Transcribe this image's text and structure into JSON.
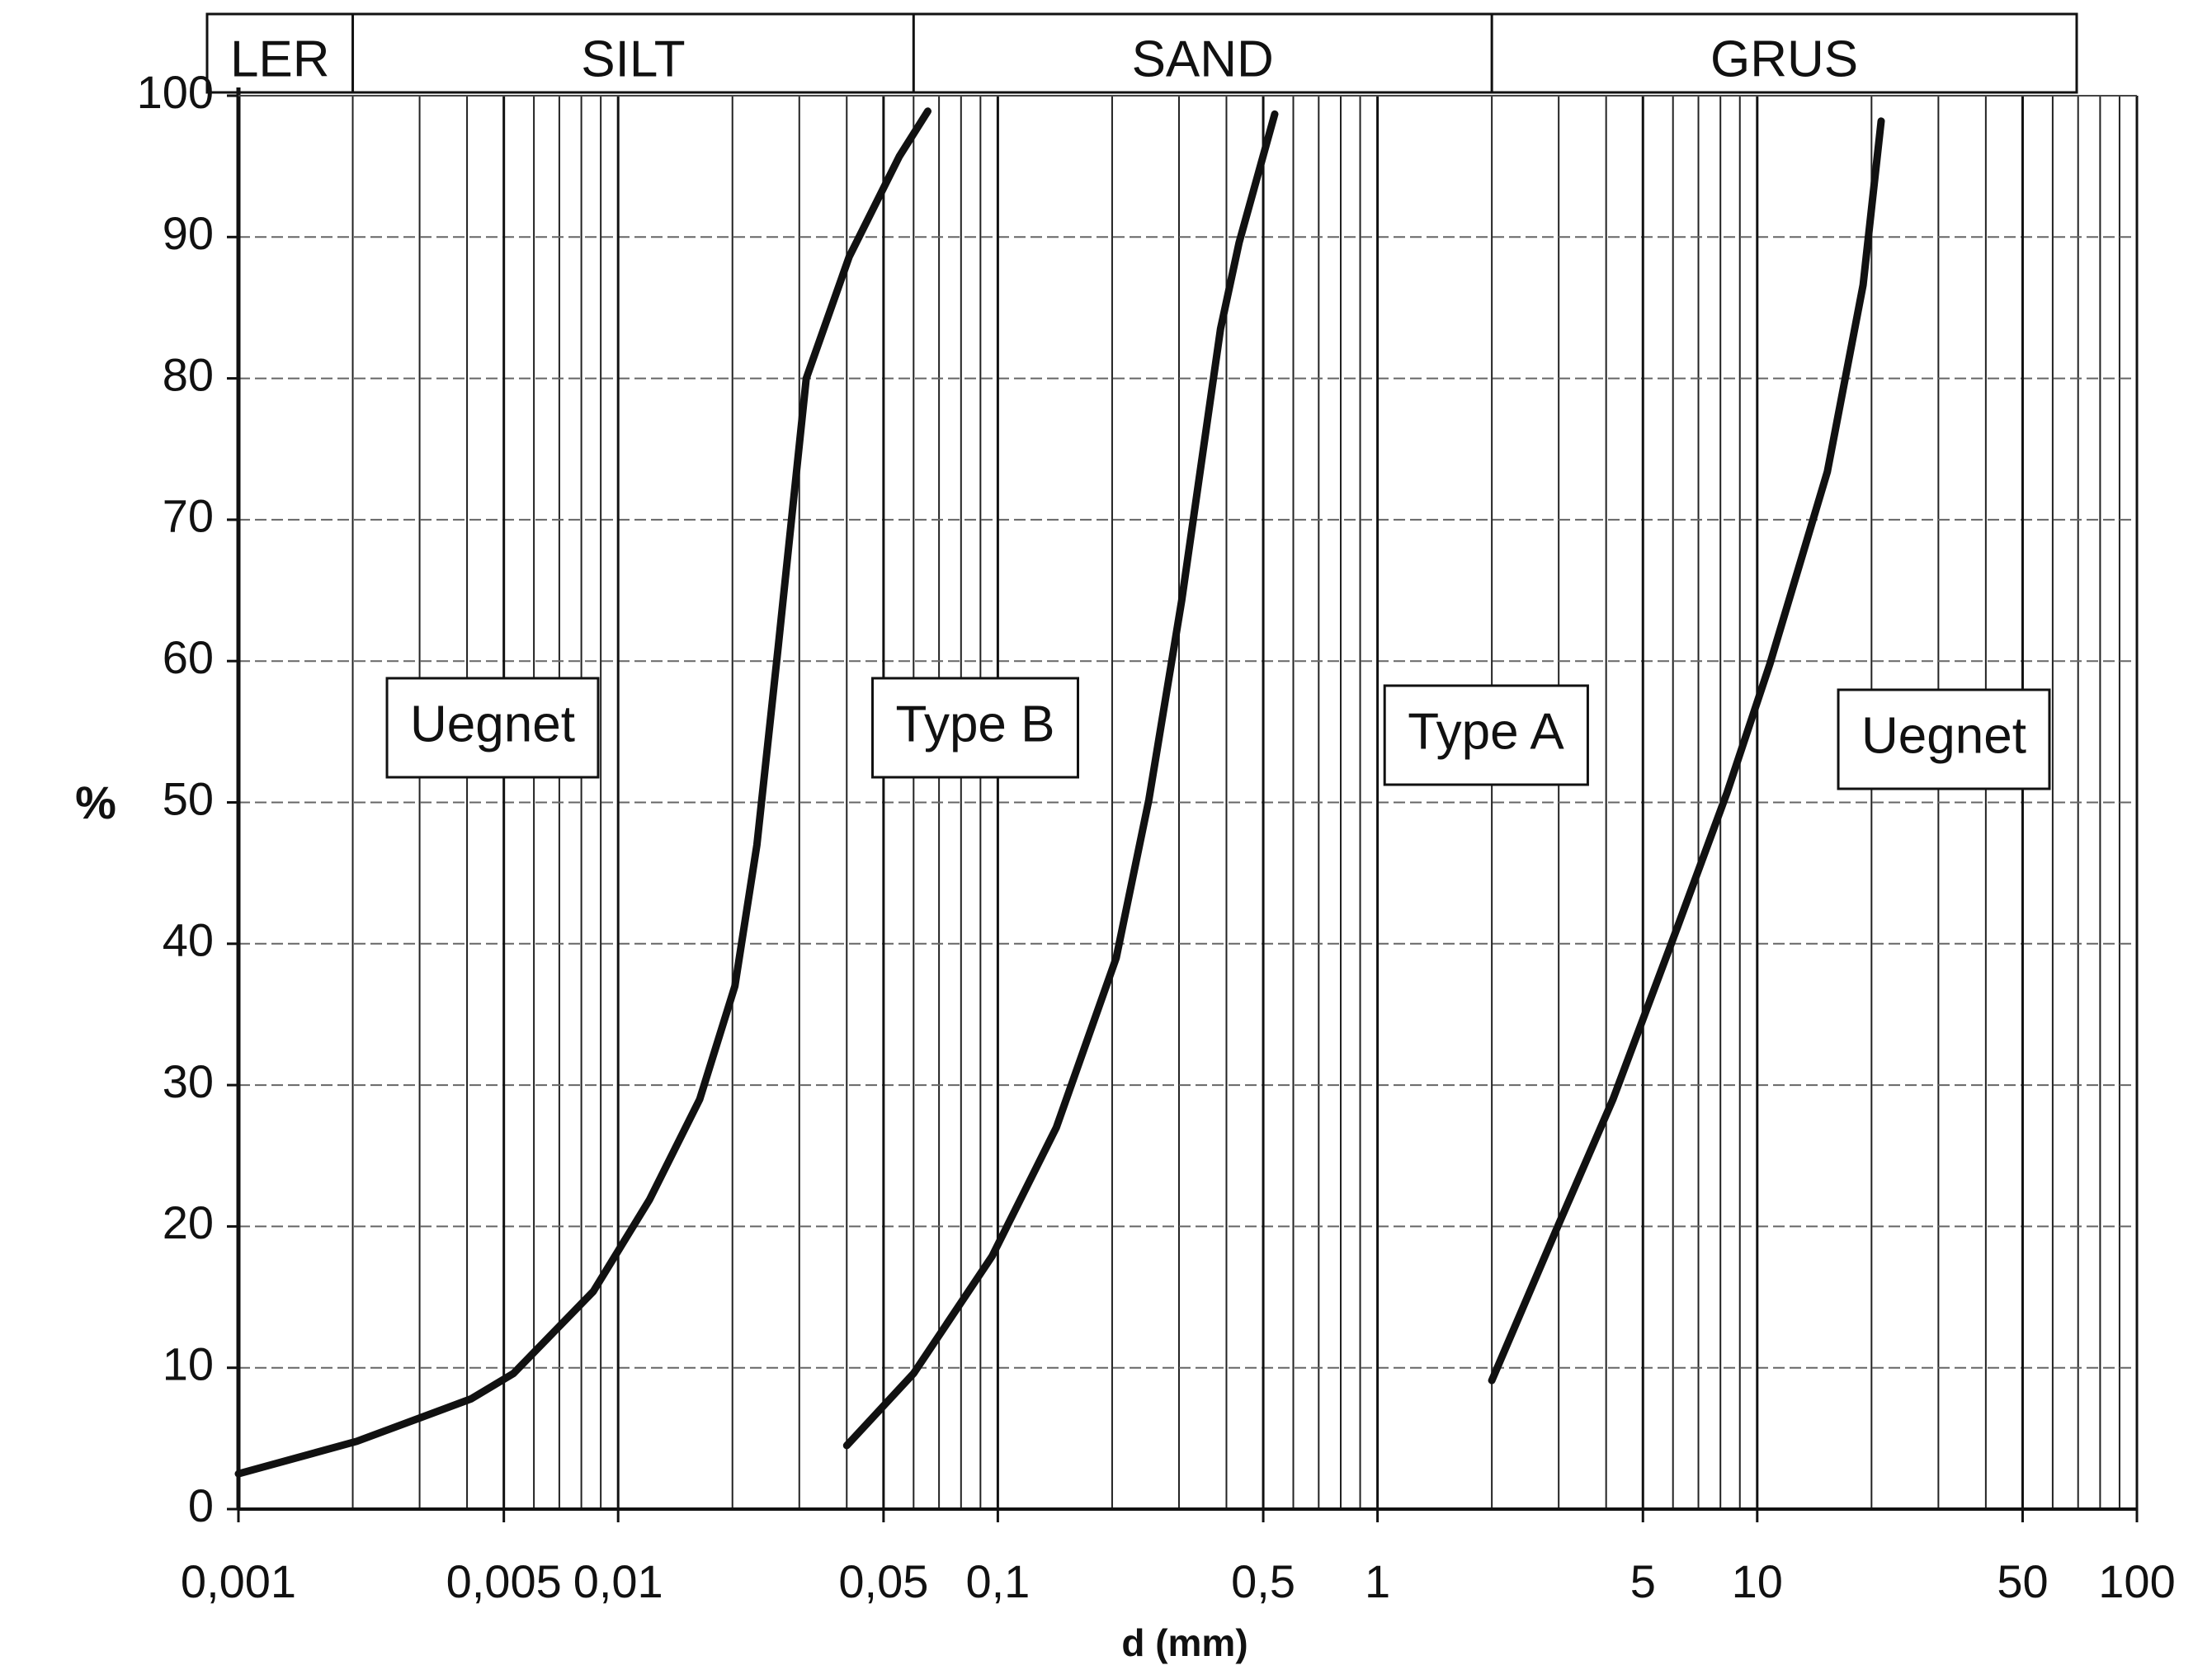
{
  "chart_data": {
    "type": "line",
    "x_label": "d (mm)",
    "y_label": "%",
    "log_x": true,
    "grid": true,
    "minor_grid": true,
    "xlim": [
      0.001,
      100
    ],
    "ylim": [
      0,
      100
    ],
    "xticks": [
      {
        "value": 0.001,
        "label": "0,001"
      },
      {
        "value": 0.005,
        "label": "0,005"
      },
      {
        "value": 0.01,
        "label": "0,01"
      },
      {
        "value": 0.05,
        "label": "0,05"
      },
      {
        "value": 0.1,
        "label": "0,1"
      },
      {
        "value": 0.5,
        "label": "0,5"
      },
      1,
      5,
      10,
      50,
      100
    ],
    "yticks": [
      0,
      10,
      20,
      30,
      40,
      50,
      60,
      70,
      80,
      90,
      100
    ],
    "soil_classes": {
      "labels": [
        "LER",
        "SILT",
        "SAND",
        "GRUS"
      ],
      "boundaries": [
        0.002,
        0.06,
        2
      ]
    },
    "annotations": [
      "Uegnet",
      "Type B",
      "Type A",
      "Uegnet"
    ],
    "series": [
      {
        "color": "#111111",
        "x": [
          0.001,
          0.00205,
          0.0041,
          0.0053,
          0.0086,
          0.0121,
          0.0164,
          0.0203,
          0.0232,
          0.0264,
          0.0313,
          0.0406,
          0.055,
          0.0654
        ],
        "values": [
          2.5,
          4.8,
          7.8,
          9.6,
          15.4,
          21.9,
          29,
          37,
          47,
          61,
          80,
          88.6,
          95.7,
          98.9
        ]
      },
      {
        "color": "#111111",
        "x": [
          0.04,
          0.06,
          0.0966,
          0.1426,
          0.205,
          0.25,
          0.305,
          0.386,
          0.432,
          0.536
        ],
        "values": [
          4.5,
          9.6,
          17.9,
          27,
          39,
          50.2,
          64.3,
          83.5,
          89.6,
          98.7
        ]
      },
      {
        "color": "#111111",
        "x": [
          2.0,
          2.95,
          4.17,
          6.15,
          8.33,
          10.8,
          15.3,
          19,
          21.2
        ],
        "values": [
          9.1,
          19.7,
          29,
          41.1,
          50.7,
          59.8,
          73.4,
          86.6,
          98.2
        ]
      }
    ]
  }
}
